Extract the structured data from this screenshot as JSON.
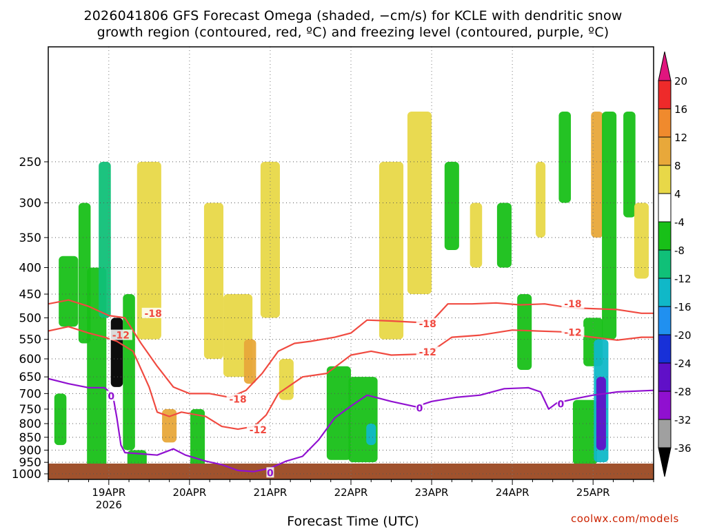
{
  "title": {
    "line1": "2026041806 GFS Forecast Omega (shaded, −cm/s) for KCLE with dendritic snow",
    "line2": "growth region (contoured, red, ºC) and freezing level (contoured, purple, ºC)"
  },
  "credit": "coolwx.com/models",
  "chart_data": {
    "type": "heatmap",
    "xlabel": "Forecast Time (UTC)",
    "ylabel": "",
    "x_ticks": [
      {
        "label": "19APR",
        "sub": "2026",
        "day": 19
      },
      {
        "label": "20APR",
        "sub": "",
        "day": 20
      },
      {
        "label": "21APR",
        "sub": "",
        "day": 21
      },
      {
        "label": "22APR",
        "sub": "",
        "day": 22
      },
      {
        "label": "23APR",
        "sub": "",
        "day": 23
      },
      {
        "label": "24APR",
        "sub": "",
        "day": 24
      },
      {
        "label": "25APR",
        "sub": "",
        "day": 25
      }
    ],
    "xlim": [
      18.25,
      25.75
    ],
    "ylim": [
      1025,
      150
    ],
    "y_ticks": [
      250,
      300,
      350,
      400,
      450,
      500,
      550,
      600,
      650,
      700,
      750,
      800,
      850,
      900,
      950,
      1000
    ],
    "grid": true,
    "colorbar": {
      "labels": [
        20,
        16,
        12,
        8,
        4,
        -4,
        -8,
        -12,
        -16,
        -20,
        -24,
        -28,
        -32,
        -36
      ],
      "colors": [
        "#e0157e",
        "#ee2a2a",
        "#f08a2d",
        "#e8a83a",
        "#e8d848",
        "#ffffff",
        "#18c018",
        "#10c078",
        "#10b8c8",
        "#2090f0",
        "#1830d8",
        "#6010c8",
        "#9010d0",
        "#a0a0a0",
        "#000000"
      ]
    },
    "contours": [
      {
        "name": "-18",
        "color": "#f04a40",
        "points": [
          [
            18.25,
            470
          ],
          [
            18.5,
            462
          ],
          [
            18.75,
            475
          ],
          [
            19.0,
            495
          ],
          [
            19.2,
            500
          ],
          [
            19.4,
            560
          ],
          [
            19.6,
            620
          ],
          [
            19.8,
            680
          ],
          [
            20.0,
            700
          ],
          [
            20.25,
            700
          ],
          [
            20.5,
            712
          ],
          [
            20.7,
            690
          ],
          [
            20.9,
            640
          ],
          [
            21.1,
            580
          ],
          [
            21.3,
            560
          ],
          [
            21.5,
            555
          ],
          [
            21.8,
            545
          ],
          [
            22.0,
            535
          ],
          [
            22.2,
            505
          ],
          [
            22.5,
            507
          ],
          [
            22.8,
            510
          ],
          [
            23.0,
            508
          ],
          [
            23.2,
            470
          ],
          [
            23.5,
            470
          ],
          [
            23.8,
            468
          ],
          [
            24.1,
            472
          ],
          [
            24.4,
            470
          ],
          [
            24.7,
            478
          ],
          [
            25.0,
            480
          ],
          [
            25.3,
            482
          ],
          [
            25.6,
            490
          ],
          [
            25.75,
            490
          ]
        ]
      },
      {
        "name": "-12",
        "color": "#f04a40",
        "points": [
          [
            18.25,
            530
          ],
          [
            18.5,
            520
          ],
          [
            18.75,
            535
          ],
          [
            18.95,
            545
          ],
          [
            19.1,
            555
          ],
          [
            19.3,
            580
          ],
          [
            19.5,
            680
          ],
          [
            19.6,
            760
          ],
          [
            19.75,
            775
          ],
          [
            19.9,
            760
          ],
          [
            20.0,
            765
          ],
          [
            20.2,
            775
          ],
          [
            20.4,
            810
          ],
          [
            20.6,
            820
          ],
          [
            20.8,
            810
          ],
          [
            20.95,
            770
          ],
          [
            21.1,
            700
          ],
          [
            21.4,
            650
          ],
          [
            21.7,
            640
          ],
          [
            22.0,
            590
          ],
          [
            22.25,
            580
          ],
          [
            22.5,
            590
          ],
          [
            22.8,
            588
          ],
          [
            23.0,
            580
          ],
          [
            23.25,
            545
          ],
          [
            23.6,
            540
          ],
          [
            24.0,
            528
          ],
          [
            24.3,
            530
          ],
          [
            24.6,
            532
          ],
          [
            24.8,
            540
          ],
          [
            25.0,
            545
          ],
          [
            25.3,
            552
          ],
          [
            25.6,
            545
          ],
          [
            25.75,
            545
          ]
        ]
      },
      {
        "name": "0",
        "color": "#9010d0",
        "points": [
          [
            18.25,
            655
          ],
          [
            18.5,
            670
          ],
          [
            18.75,
            682
          ],
          [
            18.95,
            682
          ],
          [
            19.05,
            705
          ],
          [
            19.1,
            780
          ],
          [
            19.15,
            880
          ],
          [
            19.2,
            910
          ],
          [
            19.4,
            915
          ],
          [
            19.6,
            920
          ],
          [
            19.8,
            895
          ],
          [
            19.95,
            920
          ],
          [
            20.2,
            945
          ],
          [
            20.4,
            960
          ],
          [
            20.6,
            985
          ],
          [
            20.8,
            990
          ],
          [
            21.0,
            975
          ],
          [
            21.2,
            945
          ],
          [
            21.4,
            925
          ],
          [
            21.6,
            860
          ],
          [
            21.8,
            780
          ],
          [
            22.0,
            740
          ],
          [
            22.2,
            705
          ],
          [
            22.5,
            725
          ],
          [
            22.8,
            742
          ],
          [
            23.0,
            725
          ],
          [
            23.3,
            712
          ],
          [
            23.6,
            705
          ],
          [
            23.9,
            685
          ],
          [
            24.2,
            682
          ],
          [
            24.35,
            695
          ],
          [
            24.45,
            750
          ],
          [
            24.55,
            730
          ],
          [
            24.8,
            715
          ],
          [
            25.0,
            705
          ],
          [
            25.3,
            695
          ],
          [
            25.75,
            690
          ]
        ]
      }
    ],
    "contour_labels": [
      {
        "text": "-18",
        "x": 19.55,
        "y": 490
      },
      {
        "text": "-12",
        "x": 19.15,
        "y": 540
      },
      {
        "text": "-18",
        "x": 20.6,
        "y": 718
      },
      {
        "text": "-12",
        "x": 20.85,
        "y": 822
      },
      {
        "text": "-18",
        "x": 22.95,
        "y": 513
      },
      {
        "text": "-12",
        "x": 22.95,
        "y": 582
      },
      {
        "text": "-18",
        "x": 24.75,
        "y": 470
      },
      {
        "text": "-12",
        "x": 24.75,
        "y": 533
      },
      {
        "text": "0",
        "x": 19.03,
        "y": 708
      },
      {
        "text": "0",
        "x": 21.0,
        "y": 995
      },
      {
        "text": "0",
        "x": 22.85,
        "y": 747
      },
      {
        "text": "0",
        "x": 24.6,
        "y": 733
      }
    ],
    "shading_blobs": [
      {
        "x": 18.5,
        "y": 380,
        "w": 0.08,
        "h": 140,
        "value": -8
      },
      {
        "x": 18.4,
        "y": 700,
        "w": 0.05,
        "h": 180,
        "value": -8
      },
      {
        "x": 18.7,
        "y": 300,
        "w": 0.05,
        "h": 260,
        "value": -8
      },
      {
        "x": 18.85,
        "y": 400,
        "w": 0.08,
        "h": 600,
        "value": -8
      },
      {
        "x": 18.95,
        "y": 250,
        "w": 0.05,
        "h": 250,
        "value": -12
      },
      {
        "x": 19.1,
        "y": 500,
        "w": 0.05,
        "h": 180,
        "value": -36
      },
      {
        "x": 19.25,
        "y": 450,
        "w": 0.05,
        "h": 450,
        "value": -8
      },
      {
        "x": 19.35,
        "y": 900,
        "w": 0.08,
        "h": 80,
        "value": -8
      },
      {
        "x": 19.5,
        "y": 250,
        "w": 0.1,
        "h": 300,
        "value": 4
      },
      {
        "x": 19.75,
        "y": 750,
        "w": 0.06,
        "h": 120,
        "value": 8
      },
      {
        "x": 20.1,
        "y": 750,
        "w": 0.06,
        "h": 300,
        "value": -8
      },
      {
        "x": 20.3,
        "y": 300,
        "w": 0.08,
        "h": 300,
        "value": 4
      },
      {
        "x": 20.6,
        "y": 450,
        "w": 0.12,
        "h": 200,
        "value": 4
      },
      {
        "x": 20.75,
        "y": 550,
        "w": 0.05,
        "h": 120,
        "value": 8
      },
      {
        "x": 21.0,
        "y": 250,
        "w": 0.08,
        "h": 250,
        "value": 4
      },
      {
        "x": 21.2,
        "y": 600,
        "w": 0.06,
        "h": 120,
        "value": 4
      },
      {
        "x": 21.85,
        "y": 620,
        "w": 0.1,
        "h": 320,
        "value": -8
      },
      {
        "x": 22.15,
        "y": 650,
        "w": 0.12,
        "h": 300,
        "value": -8
      },
      {
        "x": 22.25,
        "y": 800,
        "w": 0.04,
        "h": 80,
        "value": -16
      },
      {
        "x": 22.5,
        "y": 250,
        "w": 0.1,
        "h": 300,
        "value": 4
      },
      {
        "x": 22.85,
        "y": 200,
        "w": 0.1,
        "h": 250,
        "value": 4
      },
      {
        "x": 23.25,
        "y": 250,
        "w": 0.06,
        "h": 120,
        "value": -8
      },
      {
        "x": 23.55,
        "y": 300,
        "w": 0.05,
        "h": 100,
        "value": 4
      },
      {
        "x": 23.9,
        "y": 300,
        "w": 0.06,
        "h": 100,
        "value": -8
      },
      {
        "x": 24.15,
        "y": 450,
        "w": 0.06,
        "h": 180,
        "value": -8
      },
      {
        "x": 24.35,
        "y": 250,
        "w": 0.04,
        "h": 100,
        "value": 4
      },
      {
        "x": 24.65,
        "y": 200,
        "w": 0.05,
        "h": 100,
        "value": -8
      },
      {
        "x": 24.9,
        "y": 720,
        "w": 0.1,
        "h": 240,
        "value": -8
      },
      {
        "x": 25.0,
        "y": 500,
        "w": 0.08,
        "h": 120,
        "value": -8
      },
      {
        "x": 25.05,
        "y": 200,
        "w": 0.05,
        "h": 150,
        "value": 8
      },
      {
        "x": 25.1,
        "y": 550,
        "w": 0.06,
        "h": 400,
        "value": -16
      },
      {
        "x": 25.1,
        "y": 650,
        "w": 0.04,
        "h": 250,
        "value": -28
      },
      {
        "x": 25.2,
        "y": 200,
        "w": 0.06,
        "h": 350,
        "value": -8
      },
      {
        "x": 25.45,
        "y": 200,
        "w": 0.05,
        "h": 120,
        "value": -8
      },
      {
        "x": 25.6,
        "y": 300,
        "w": 0.06,
        "h": 120,
        "value": 4
      }
    ]
  }
}
